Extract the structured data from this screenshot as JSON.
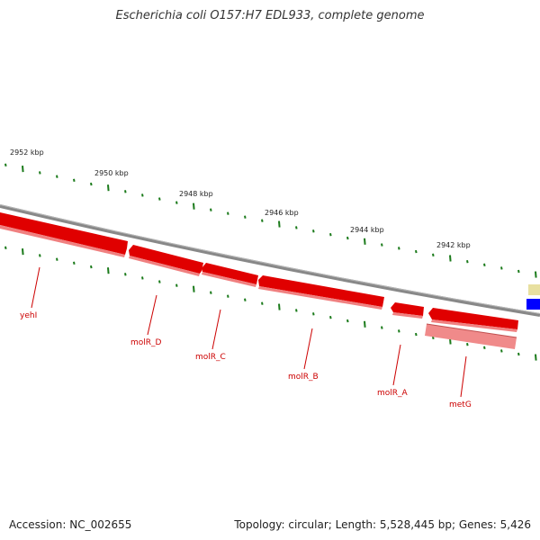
{
  "title": "Escherichia coli O157:H7 EDL933, complete genome",
  "footer": {
    "accession": "Accession: NC_002655",
    "summary": "Topology: circular; Length: 5,528,445 bp; Genes: 5,426"
  },
  "colors": {
    "backbone": "#888888",
    "tick": "#1a7a1a",
    "gene_forward": "#e00000",
    "gene_reverse": "#f08080",
    "label": "#cc0000",
    "feature_blue": "#0000ff",
    "feature_yellow": "#e8e0a0"
  },
  "ticks": [
    {
      "label": "2952 kbp"
    },
    {
      "label": "2950 kbp"
    },
    {
      "label": "2948 kbp"
    },
    {
      "label": "2946 kbp"
    },
    {
      "label": "2944 kbp"
    },
    {
      "label": "2942 kbp"
    }
  ],
  "genes": [
    {
      "name": "yehI",
      "strand": "reverse"
    },
    {
      "name": "molR_D",
      "strand": "reverse"
    },
    {
      "name": "molR_C",
      "strand": "reverse"
    },
    {
      "name": "molR_B",
      "strand": "reverse"
    },
    {
      "name": "molR_A",
      "strand": "reverse"
    },
    {
      "name": "metG",
      "strand": "reverse"
    }
  ]
}
